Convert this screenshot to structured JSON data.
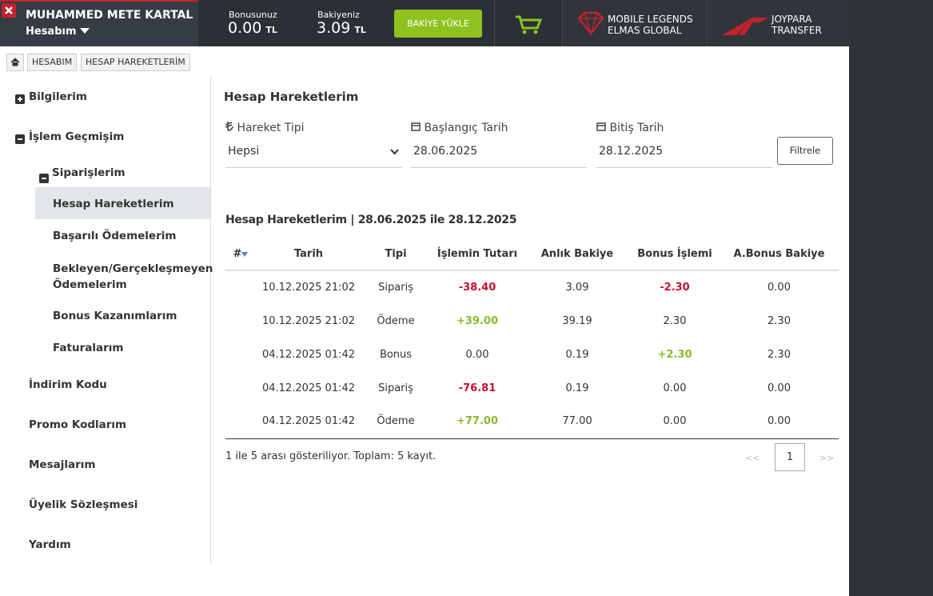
{
  "header": {
    "user_name": "MUHAMMED METE KARTAL",
    "account_menu": "Hesabım",
    "bonus_label": "Bonusunuz",
    "bonus_amount": "0.00",
    "bonus_currency": "TL",
    "balance_label": "Bakiyeniz",
    "balance_amount": "3.09",
    "balance_currency": "TL",
    "topup_button": "BAKİYE YÜKLE",
    "promo_1": [
      "MOBILE LEGENDS",
      "ELMAS GLOBAL"
    ],
    "promo_2": [
      "JOYPARA",
      "TRANSFER"
    ]
  },
  "breadcrumb": [
    "HESABIM",
    "HESAP HAREKETLERİM"
  ],
  "sidebar": {
    "items": [
      "Bilgilerim",
      "İşlem Geçmişim"
    ],
    "sub_group": "Siparişlerim",
    "sub_items": [
      "Hesap Hareketlerim",
      "Başarılı Ödemelerim",
      "Bekleyen/Gerçekleşmeyen Ödemelerim",
      "Bonus Kazanımlarım",
      "Faturalarım"
    ],
    "more_items": [
      "İndirim Kodu",
      "Promo Kodlarım",
      "Mesajlarım",
      "Üyelik Sözleşmesi",
      "Yardım"
    ]
  },
  "content": {
    "title": "Hesap Hareketlerim",
    "filters": {
      "type_label": "Hareket Tipi",
      "type_value": "Hepsi",
      "start_label": "Başlangıç Tarih",
      "start_value": "28.06.2025",
      "end_label": "Bitiş Tarih",
      "end_value": "28.12.2025",
      "button": "Filtrele"
    },
    "table_title": "Hesap Hareketlerim | 28.06.2025 ile 28.12.2025",
    "table": {
      "columns": [
        "#",
        "Tarih",
        "Tipi",
        "İşlemin Tutarı",
        "Anlık Bakiye",
        "Bonus İşlemi",
        "A.Bonus Bakiye"
      ],
      "rows": [
        [
          "",
          "10.12.2025 21:02",
          "Sipariş",
          "-38.40",
          "3.09",
          "-2.30",
          "0.00"
        ],
        [
          "",
          "10.12.2025 21:02",
          "Ödeme",
          "+39.00",
          "39.19",
          "2.30",
          "2.30"
        ],
        [
          "",
          "04.12.2025 01:42",
          "Bonus",
          "0.00",
          "0.19",
          "+2.30",
          "2.30"
        ],
        [
          "",
          "04.12.2025 01:42",
          "Sipariş",
          "-76.81",
          "0.19",
          "0.00",
          "0.00"
        ],
        [
          "",
          "04.12.2025 01:42",
          "Ödeme",
          "+77.00",
          "77.00",
          "0.00",
          "0.00"
        ]
      ]
    },
    "summary": "1 ile 5 arası gösteriliyor. Toplam: 5 kayıt.",
    "pagination": {
      "prev": "<<",
      "page": "1",
      "next": ">>"
    }
  }
}
